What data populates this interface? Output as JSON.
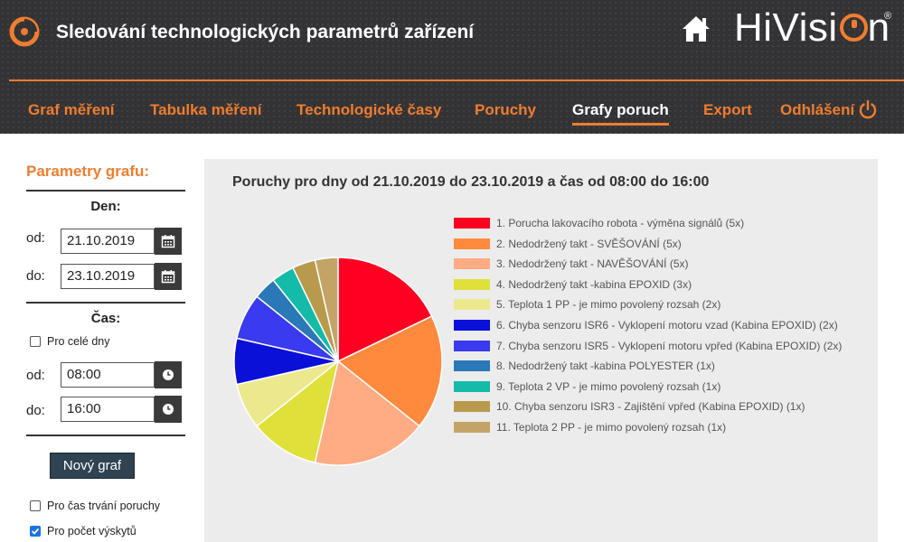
{
  "header": {
    "title": "Sledování technologických parametrů zařízení",
    "brand": "HiVisi",
    "brand_suffix": "n",
    "brand_mark": "®"
  },
  "nav": {
    "items": [
      "Graf měření",
      "Tabulka měření",
      "Technologické časy",
      "Poruchy",
      "Grafy poruch",
      "Export",
      "Odhlášení"
    ],
    "active": "Grafy poruch"
  },
  "sidebar": {
    "title": "Parametry grafu:",
    "day_section": "Den:",
    "from_label": "od:",
    "to_label": "do:",
    "date_from": "21.10.2019",
    "date_to": "23.10.2019",
    "time_section": "Čas:",
    "all_days_label": "Pro celé dny",
    "all_days_checked": false,
    "time_from": "08:00",
    "time_to": "16:00",
    "new_graph_button": "Nový graf",
    "duration_label": "Pro čas trvání poruchy",
    "duration_checked": false,
    "count_label": "Pro počet výskytů",
    "count_checked": true
  },
  "chart_data": {
    "type": "pie",
    "title": "Poruchy pro dny od 21.10.2019 do 23.10.2019 a čas od 08:00 do 16:00",
    "legend_position": "right",
    "categories": [
      "1. Porucha lakovacího robota - výměna signálů (5x)",
      "2. Nedodržený takt - SVĚŠOVÁNÍ (5x)",
      "3. Nedodržený takt - NAVĚŠOVÁNÍ (5x)",
      "4. Nedodržený takt -kabina EPOXID (3x)",
      "5. Teplota 1 PP - je mimo povolený rozsah (2x)",
      "6. Chyba senzoru ISR6 - Vyklopení motoru vzad (Kabina EPOXID) (2x)",
      "7. Chyba senzoru ISR5 - Vyklopení motoru vpřed (Kabina EPOXID) (2x)",
      "8. Nedodržený takt -kabina POLYESTER (1x)",
      "9. Teplota 2 VP - je mimo povolený rozsah (1x)",
      "10. Chyba senzoru ISR3 - Zajištění vpřed (Kabina EPOXID) (1x)",
      "11. Teplota 2 PP - je mimo povolený rozsah (1x)"
    ],
    "values": [
      5,
      5,
      5,
      3,
      2,
      2,
      2,
      1,
      1,
      1,
      1
    ],
    "colors": [
      "#ff0022",
      "#ff8a3d",
      "#ffab84",
      "#e0e03a",
      "#ece88e",
      "#0a10d8",
      "#3a3af0",
      "#2a78b8",
      "#14bba8",
      "#b99a4c",
      "#c4a466"
    ]
  }
}
